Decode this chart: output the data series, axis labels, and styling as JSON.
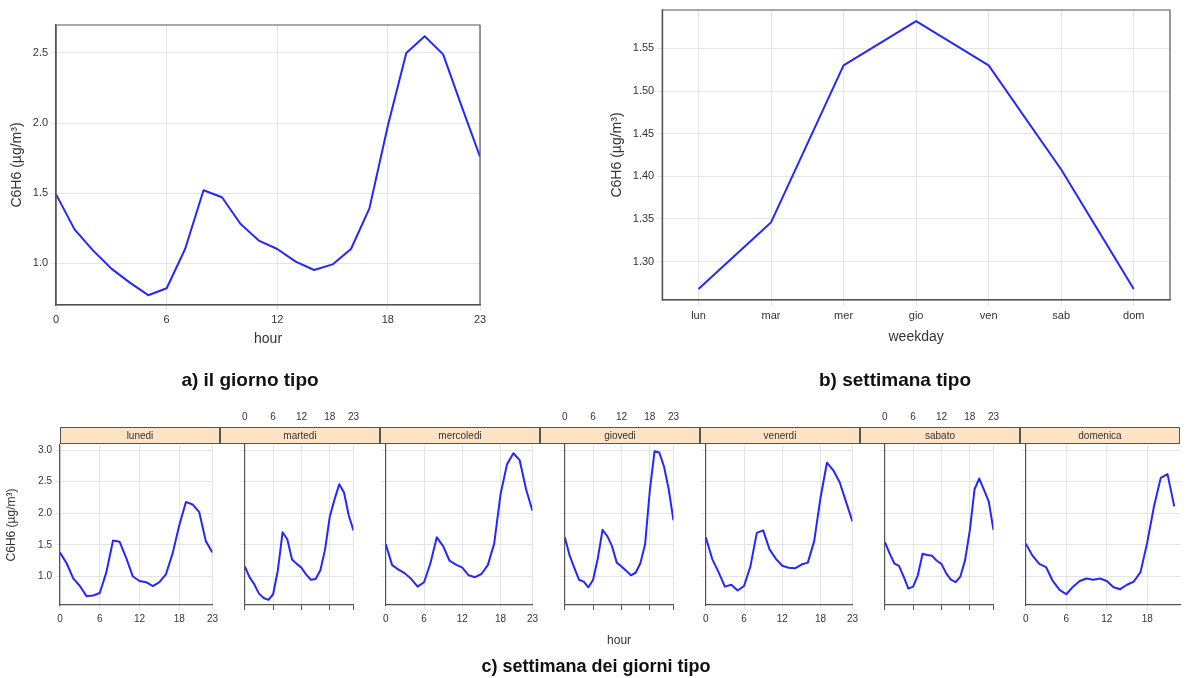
{
  "chart_data": [
    {
      "type": "line",
      "title": "a) il giorno tipo",
      "xlabel": "hour",
      "ylabel": "C6H6 (µg/m³)",
      "x": [
        0,
        1,
        2,
        3,
        4,
        5,
        6,
        7,
        8,
        9,
        10,
        11,
        12,
        13,
        14,
        15,
        16,
        17,
        18,
        19,
        20,
        21,
        22,
        23
      ],
      "values": [
        1.49,
        1.24,
        1.09,
        0.96,
        0.86,
        0.77,
        0.82,
        1.1,
        1.52,
        1.47,
        1.28,
        1.16,
        1.1,
        1.01,
        0.95,
        0.99,
        1.1,
        1.39,
        1.98,
        2.5,
        2.62,
        2.49,
        2.12,
        1.76
      ],
      "color": "#2626ff",
      "xlim": [
        0,
        23
      ],
      "xticks": [
        0,
        6,
        12,
        18,
        23
      ],
      "ylim": [
        0.7,
        2.7
      ],
      "yticks": [
        {
          "value": 1,
          "label": "1.0"
        },
        {
          "value": 1.5,
          "label": "1.5"
        },
        {
          "value": 2,
          "label": "2.0"
        },
        {
          "value": 2.5,
          "label": "2.5"
        }
      ],
      "grid": true
    },
    {
      "type": "line",
      "title": "b) settimana tipo",
      "xlabel": "weekday",
      "ylabel": "C6H6 (µg/m³)",
      "categories": [
        "lun",
        "mar",
        "mer",
        "gio",
        "ven",
        "sab",
        "dom"
      ],
      "values": [
        1.268,
        1.346,
        1.53,
        1.582,
        1.53,
        1.408,
        1.268
      ],
      "color": "#2626ff",
      "ylim": [
        1.255,
        1.595
      ],
      "yticks": [
        {
          "value": 1.3,
          "label": "1.30"
        },
        {
          "value": 1.35,
          "label": "1.35"
        },
        {
          "value": 1.4,
          "label": "1.40"
        },
        {
          "value": 1.45,
          "label": "1.45"
        },
        {
          "value": 1.5,
          "label": "1.50"
        },
        {
          "value": 1.55,
          "label": "1.55"
        }
      ],
      "grid": true
    },
    {
      "type": "line",
      "title": "lunedi",
      "ylabel": "C6H6 (µg/m³)",
      "x": [
        0,
        1,
        2,
        3,
        4,
        5,
        6,
        7,
        8,
        9,
        10,
        11,
        12,
        13,
        14,
        15,
        16,
        17,
        18,
        19,
        20,
        21,
        22,
        23
      ],
      "values": [
        1.38,
        1.21,
        0.97,
        0.85,
        0.69,
        0.7,
        0.74,
        1.07,
        1.57,
        1.55,
        1.29,
        1.0,
        0.93,
        0.91,
        0.85,
        0.91,
        1.04,
        1.37,
        1.81,
        2.18,
        2.14,
        2.02,
        1.56,
        1.38
      ],
      "color": "#2626ff",
      "xlim": [
        0,
        23
      ],
      "xticks": [
        0,
        6,
        12,
        18,
        23
      ],
      "ylim": [
        0.55,
        3.08
      ],
      "yticks": [
        {
          "value": 1,
          "label": "1.0"
        },
        {
          "value": 1.5,
          "label": "1.5"
        },
        {
          "value": 2,
          "label": "2.0"
        },
        {
          "value": 2.5,
          "label": "2.5"
        },
        {
          "value": 3,
          "label": "3.0"
        }
      ],
      "grid": true
    },
    {
      "type": "line",
      "title": "martedi",
      "x": [
        0,
        1,
        2,
        3,
        4,
        5,
        6,
        7,
        8,
        9,
        10,
        11,
        12,
        13,
        14,
        15,
        16,
        17,
        18,
        19,
        20,
        21,
        22,
        23
      ],
      "values": [
        1.16,
        0.99,
        0.88,
        0.73,
        0.66,
        0.63,
        0.72,
        1.1,
        1.7,
        1.59,
        1.27,
        1.2,
        1.14,
        1.03,
        0.95,
        0.96,
        1.1,
        1.43,
        1.95,
        2.22,
        2.46,
        2.33,
        1.97,
        1.73
      ],
      "color": "#2626ff",
      "xlim": [
        0,
        23
      ],
      "xticks": [
        0,
        6,
        12,
        18,
        23
      ],
      "ylim": [
        0.55,
        3.08
      ],
      "yticks": [
        {
          "value": 1,
          "label": null
        },
        {
          "value": 1.5,
          "label": null
        },
        {
          "value": 2,
          "label": null
        },
        {
          "value": 2.5,
          "label": null
        },
        {
          "value": 3,
          "label": null
        }
      ],
      "grid": true,
      "tick_labels": "x"
    },
    {
      "type": "line",
      "title": "mercoledi",
      "x": [
        0,
        1,
        2,
        3,
        4,
        5,
        6,
        7,
        8,
        9,
        10,
        11,
        12,
        13,
        14,
        15,
        16,
        17,
        18,
        19,
        20,
        21,
        22,
        23
      ],
      "values": [
        1.51,
        1.18,
        1.11,
        1.05,
        0.96,
        0.84,
        0.91,
        1.21,
        1.62,
        1.48,
        1.25,
        1.19,
        1.14,
        1.02,
        0.99,
        1.04,
        1.18,
        1.52,
        2.3,
        2.77,
        2.95,
        2.84,
        2.38,
        2.04
      ],
      "color": "#2626ff",
      "xlim": [
        0,
        23
      ],
      "xticks": [
        0,
        6,
        12,
        18,
        23
      ],
      "ylim": [
        0.55,
        3.08
      ],
      "yticks": [
        {
          "value": 1,
          "label": null
        },
        {
          "value": 1.5,
          "label": null
        },
        {
          "value": 2,
          "label": null
        },
        {
          "value": 2.5,
          "label": null
        },
        {
          "value": 3,
          "label": null
        }
      ],
      "grid": true,
      "tick_labels": "x"
    },
    {
      "type": "line",
      "title": "giovedi",
      "xlabel": "hour",
      "annotations": [
        "c) settimana dei giorni tipo"
      ],
      "x": [
        0,
        1,
        2,
        3,
        4,
        5,
        6,
        7,
        8,
        9,
        10,
        11,
        12,
        13,
        14,
        15,
        16,
        17,
        18,
        19,
        20,
        21,
        22,
        23
      ],
      "values": [
        1.62,
        1.34,
        1.14,
        0.95,
        0.92,
        0.83,
        0.95,
        1.29,
        1.74,
        1.64,
        1.48,
        1.22,
        1.16,
        1.09,
        1.02,
        1.06,
        1.21,
        1.51,
        2.36,
        2.98,
        2.96,
        2.74,
        2.38,
        1.89
      ],
      "color": "#2626ff",
      "xlim": [
        0,
        23
      ],
      "xticks": [
        0,
        6,
        12,
        18,
        23
      ],
      "ylim": [
        0.55,
        3.08
      ],
      "yticks": [
        {
          "value": 1,
          "label": null
        },
        {
          "value": 1.5,
          "label": null
        },
        {
          "value": 2,
          "label": null
        },
        {
          "value": 2.5,
          "label": null
        },
        {
          "value": 3,
          "label": null
        }
      ],
      "grid": true,
      "tick_labels": "x"
    },
    {
      "type": "line",
      "title": "venerdi",
      "x": [
        0,
        1,
        2,
        3,
        4,
        5,
        6,
        7,
        8,
        9,
        10,
        11,
        12,
        13,
        14,
        15,
        16,
        17,
        18,
        19,
        20,
        21,
        22,
        23
      ],
      "values": [
        1.62,
        1.28,
        1.07,
        0.84,
        0.87,
        0.78,
        0.85,
        1.16,
        1.69,
        1.73,
        1.43,
        1.28,
        1.17,
        1.14,
        1.13,
        1.19,
        1.22,
        1.56,
        2.25,
        2.8,
        2.68,
        2.49,
        2.18,
        1.87
      ],
      "color": "#2626ff",
      "xlim": [
        0,
        23
      ],
      "xticks": [
        0,
        6,
        12,
        18,
        23
      ],
      "ylim": [
        0.55,
        3.08
      ],
      "yticks": [
        {
          "value": 1,
          "label": null
        },
        {
          "value": 1.5,
          "label": null
        },
        {
          "value": 2,
          "label": null
        },
        {
          "value": 2.5,
          "label": null
        },
        {
          "value": 3,
          "label": null
        }
      ],
      "grid": true,
      "tick_labels": "x"
    },
    {
      "type": "line",
      "title": "sabato",
      "x": [
        0,
        1,
        2,
        3,
        4,
        5,
        6,
        7,
        8,
        9,
        10,
        11,
        12,
        13,
        14,
        15,
        16,
        17,
        18,
        19,
        20,
        21,
        22,
        23
      ],
      "values": [
        1.55,
        1.37,
        1.21,
        1.17,
        1.0,
        0.81,
        0.84,
        1.02,
        1.36,
        1.34,
        1.33,
        1.25,
        1.2,
        1.05,
        0.95,
        0.91,
        1.0,
        1.26,
        1.73,
        2.38,
        2.55,
        2.37,
        2.19,
        1.74
      ],
      "color": "#2626ff",
      "xlim": [
        0,
        23
      ],
      "xticks": [
        0,
        6,
        12,
        18,
        23
      ],
      "ylim": [
        0.55,
        3.08
      ],
      "yticks": [
        {
          "value": 1,
          "label": null
        },
        {
          "value": 1.5,
          "label": null
        },
        {
          "value": 2,
          "label": null
        },
        {
          "value": 2.5,
          "label": null
        },
        {
          "value": 3,
          "label": null
        }
      ],
      "grid": true,
      "tick_labels": "x"
    },
    {
      "type": "line",
      "title": "domenica",
      "x": [
        0,
        1,
        2,
        3,
        4,
        5,
        6,
        7,
        8,
        9,
        10,
        11,
        12,
        13,
        14,
        15,
        16,
        17,
        18,
        19,
        20,
        21,
        22
      ],
      "values": [
        1.52,
        1.33,
        1.2,
        1.15,
        0.93,
        0.79,
        0.72,
        0.84,
        0.93,
        0.97,
        0.95,
        0.97,
        0.93,
        0.83,
        0.8,
        0.87,
        0.92,
        1.07,
        1.54,
        2.11,
        2.56,
        2.62,
        2.11
      ],
      "color": "#2626ff",
      "xlim": [
        0,
        23
      ],
      "xticks": [
        0,
        6,
        12,
        18
      ],
      "ylim": [
        0.55,
        3.08
      ],
      "yticks": [
        {
          "value": 1,
          "label": null
        },
        {
          "value": 1.5,
          "label": null
        },
        {
          "value": 2,
          "label": null
        },
        {
          "value": 2.5,
          "label": null
        },
        {
          "value": 3,
          "label": null
        }
      ],
      "grid": true,
      "tick_labels": "x"
    }
  ]
}
